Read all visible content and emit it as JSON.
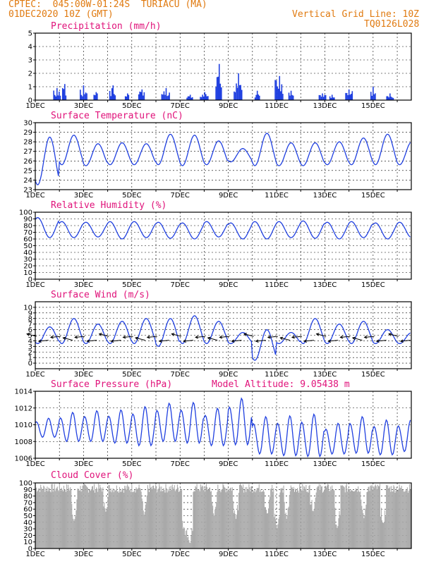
{
  "header": {
    "line1": "CPTEC:  045:00W-01:24S  TURIACU (MA)",
    "line2": "01DEC2020 10Z (GMT)",
    "right1": "Vertical Grid Line: 10Z",
    "right2": "TQ0126L028"
  },
  "colors": {
    "header": "#e07a10",
    "title": "#e0127a",
    "series": "#2040e0",
    "cloud": "#a9a9a9",
    "arrow": "#000000"
  },
  "chart_data": [
    {
      "type": "bar",
      "title": "Precipitation (mm/h)",
      "x_labels": [
        "1DEC",
        "3DEC",
        "5DEC",
        "7DEC",
        "9DEC",
        "11DEC",
        "13DEC",
        "15DEC"
      ],
      "ylim": [
        0,
        5
      ],
      "yticks": [
        0,
        1,
        2,
        3,
        4,
        5
      ],
      "grid": true,
      "peaks": [
        {
          "day": 0.9,
          "value": 0.9
        },
        {
          "day": 1.2,
          "value": 1.2
        },
        {
          "day": 2.0,
          "value": 1.1
        },
        {
          "day": 2.5,
          "value": 0.6
        },
        {
          "day": 3.2,
          "value": 1.1
        },
        {
          "day": 3.8,
          "value": 0.5
        },
        {
          "day": 4.4,
          "value": 0.8
        },
        {
          "day": 5.4,
          "value": 0.9
        },
        {
          "day": 6.4,
          "value": 0.4
        },
        {
          "day": 7.0,
          "value": 0.6
        },
        {
          "day": 7.6,
          "value": 2.7
        },
        {
          "day": 8.4,
          "value": 2.0
        },
        {
          "day": 9.2,
          "value": 0.7
        },
        {
          "day": 10.1,
          "value": 1.8
        },
        {
          "day": 10.6,
          "value": 0.7
        },
        {
          "day": 11.9,
          "value": 0.5
        },
        {
          "day": 12.3,
          "value": 0.4
        },
        {
          "day": 13.0,
          "value": 0.8
        },
        {
          "day": 14.0,
          "value": 1.0
        },
        {
          "day": 14.7,
          "value": 0.5
        }
      ]
    },
    {
      "type": "line",
      "title": "Surface Temperature (nC)",
      "x_labels": [
        "1DEC",
        "3DEC",
        "5DEC",
        "7DEC",
        "9DEC",
        "11DEC",
        "13DEC",
        "15DEC"
      ],
      "ylim": [
        23,
        30
      ],
      "yticks": [
        23,
        24,
        25,
        26,
        27,
        28,
        29,
        30
      ],
      "grid": true,
      "daily_max": [
        28.5,
        28.7,
        27.8,
        27.9,
        27.8,
        28.8,
        28.7,
        28.1,
        27.3,
        28.9,
        27.9,
        27.9,
        28.0,
        28.4,
        28.8,
        28.0
      ],
      "daily_min": [
        23.5,
        25.6,
        25.5,
        25.6,
        25.6,
        25.6,
        25.5,
        25.6,
        25.9,
        25.5,
        25.5,
        25.5,
        25.6,
        25.6,
        25.6,
        25.6
      ]
    },
    {
      "type": "line",
      "title": "Relative Humidity (%)",
      "x_labels": [
        "1DEC",
        "3DEC",
        "5DEC",
        "7DEC",
        "9DEC",
        "11DEC",
        "13DEC",
        "15DEC"
      ],
      "ylim": [
        0,
        100
      ],
      "yticks": [
        0,
        10,
        20,
        30,
        40,
        50,
        60,
        70,
        80,
        90,
        100
      ],
      "grid": true,
      "daily_max": [
        92,
        86,
        85,
        86,
        86,
        85,
        84,
        86,
        84,
        86,
        86,
        87,
        85,
        86,
        84,
        85
      ],
      "daily_min": [
        62,
        62,
        63,
        60,
        62,
        61,
        60,
        63,
        60,
        60,
        62,
        61,
        60,
        62,
        60,
        62
      ]
    },
    {
      "type": "line",
      "title": "Surface Wind (m/s)",
      "x_labels": [
        "1DEC",
        "3DEC",
        "5DEC",
        "7DEC",
        "9DEC",
        "11DEC",
        "13DEC",
        "15DEC"
      ],
      "ylim": [
        -1,
        11
      ],
      "yticks": [
        0,
        1,
        2,
        3,
        4,
        5,
        6,
        7,
        8,
        9,
        10
      ],
      "grid": true,
      "daily_max": [
        6.5,
        8.0,
        7.0,
        7.5,
        8.0,
        8.0,
        8.5,
        7.5,
        5.5,
        6.0,
        5.5,
        8.0,
        7.0,
        7.5,
        6.0,
        5.5
      ],
      "daily_min": [
        3.5,
        3.5,
        3.5,
        3.5,
        3.5,
        3.0,
        3.5,
        3.5,
        3.5,
        0.5,
        3.5,
        3.5,
        3.5,
        3.5,
        3.5,
        3.5
      ]
    },
    {
      "type": "line",
      "title": "Surface Pressure (hPa)",
      "subtitle": "Model Altitude: 9.05438 m",
      "x_labels": [
        "1DEC",
        "3DEC",
        "5DEC",
        "7DEC",
        "9DEC",
        "11DEC",
        "13DEC",
        "15DEC"
      ],
      "ylim": [
        1006,
        1014
      ],
      "yticks": [
        1006,
        1008,
        1010,
        1012,
        1014
      ],
      "grid": true,
      "daily_max": [
        1010.8,
        1011.5,
        1011.7,
        1011.8,
        1012.2,
        1012.6,
        1012.7,
        1012.0,
        1013.2,
        1011.0,
        1011.1,
        1011.3,
        1010.2,
        1011.0,
        1010.6,
        1010.6
      ],
      "daily_min": [
        1008.5,
        1008.0,
        1008.0,
        1007.8,
        1007.5,
        1008.0,
        1007.8,
        1007.5,
        1007.6,
        1006.5,
        1006.3,
        1006.2,
        1006.5,
        1006.6,
        1006.4,
        1006.8
      ]
    },
    {
      "type": "bar",
      "title": "Cloud Cover (%)",
      "x_labels": [
        "1DEC",
        "3DEC",
        "5DEC",
        "7DEC",
        "9DEC",
        "11DEC",
        "13DEC",
        "15DEC"
      ],
      "ylim": [
        0,
        100
      ],
      "yticks": [
        0,
        10,
        20,
        30,
        40,
        50,
        60,
        70,
        80,
        90,
        100
      ],
      "grid": true,
      "typical_value": 92,
      "dips": [
        {
          "day": 1.6,
          "value": 40
        },
        {
          "day": 2.9,
          "value": 55
        },
        {
          "day": 4.5,
          "value": 50
        },
        {
          "day": 6.2,
          "value": 20
        },
        {
          "day": 6.4,
          "value": 5
        },
        {
          "day": 7.4,
          "value": 50
        },
        {
          "day": 8.3,
          "value": 45
        },
        {
          "day": 9.6,
          "value": 50
        },
        {
          "day": 10.0,
          "value": 30
        },
        {
          "day": 10.4,
          "value": 45
        },
        {
          "day": 11.5,
          "value": 55
        },
        {
          "day": 12.5,
          "value": 30
        },
        {
          "day": 13.6,
          "value": 45
        },
        {
          "day": 14.4,
          "value": 35
        }
      ]
    }
  ]
}
